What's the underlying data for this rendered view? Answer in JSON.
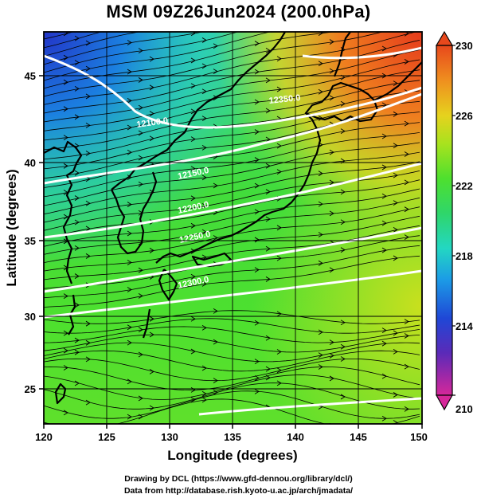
{
  "title": "MSM 09Z26Jun2024 (200.0hPa)",
  "x_axis": {
    "label": "Longitude (degrees)",
    "ticks": [
      "120",
      "125",
      "130",
      "135",
      "140",
      "145",
      "150"
    ],
    "range": [
      120,
      150
    ]
  },
  "y_axis": {
    "label": "Latitude  (degrees)",
    "ticks": [
      "25",
      "30",
      "35",
      "40",
      "45"
    ],
    "range": [
      22.5,
      47.6
    ]
  },
  "colorbar": {
    "ticks": [
      "230",
      "226",
      "222",
      "218",
      "214",
      "210"
    ],
    "range": [
      210,
      230
    ],
    "colors": [
      "#d6279a",
      "#5b2ab8",
      "#1f47d6",
      "#1c9be6",
      "#23d7c2",
      "#2fd66a",
      "#4ee02e",
      "#a9e21e",
      "#e6d21e",
      "#ef8f1f",
      "#e8481c"
    ]
  },
  "contours": [
    {
      "label": "12100.0"
    },
    {
      "label": "12150.0"
    },
    {
      "label": "12200.0"
    },
    {
      "label": "12250.0"
    },
    {
      "label": "12300.0"
    },
    {
      "label": "12350.0"
    }
  ],
  "credits": {
    "line1": "Drawing by DCL (https://www.gfd-dennou.org/library/dcl/)",
    "line2": "Data from http://database.rish.kyoto-u.ac.jp/arch/jmadata/"
  }
}
